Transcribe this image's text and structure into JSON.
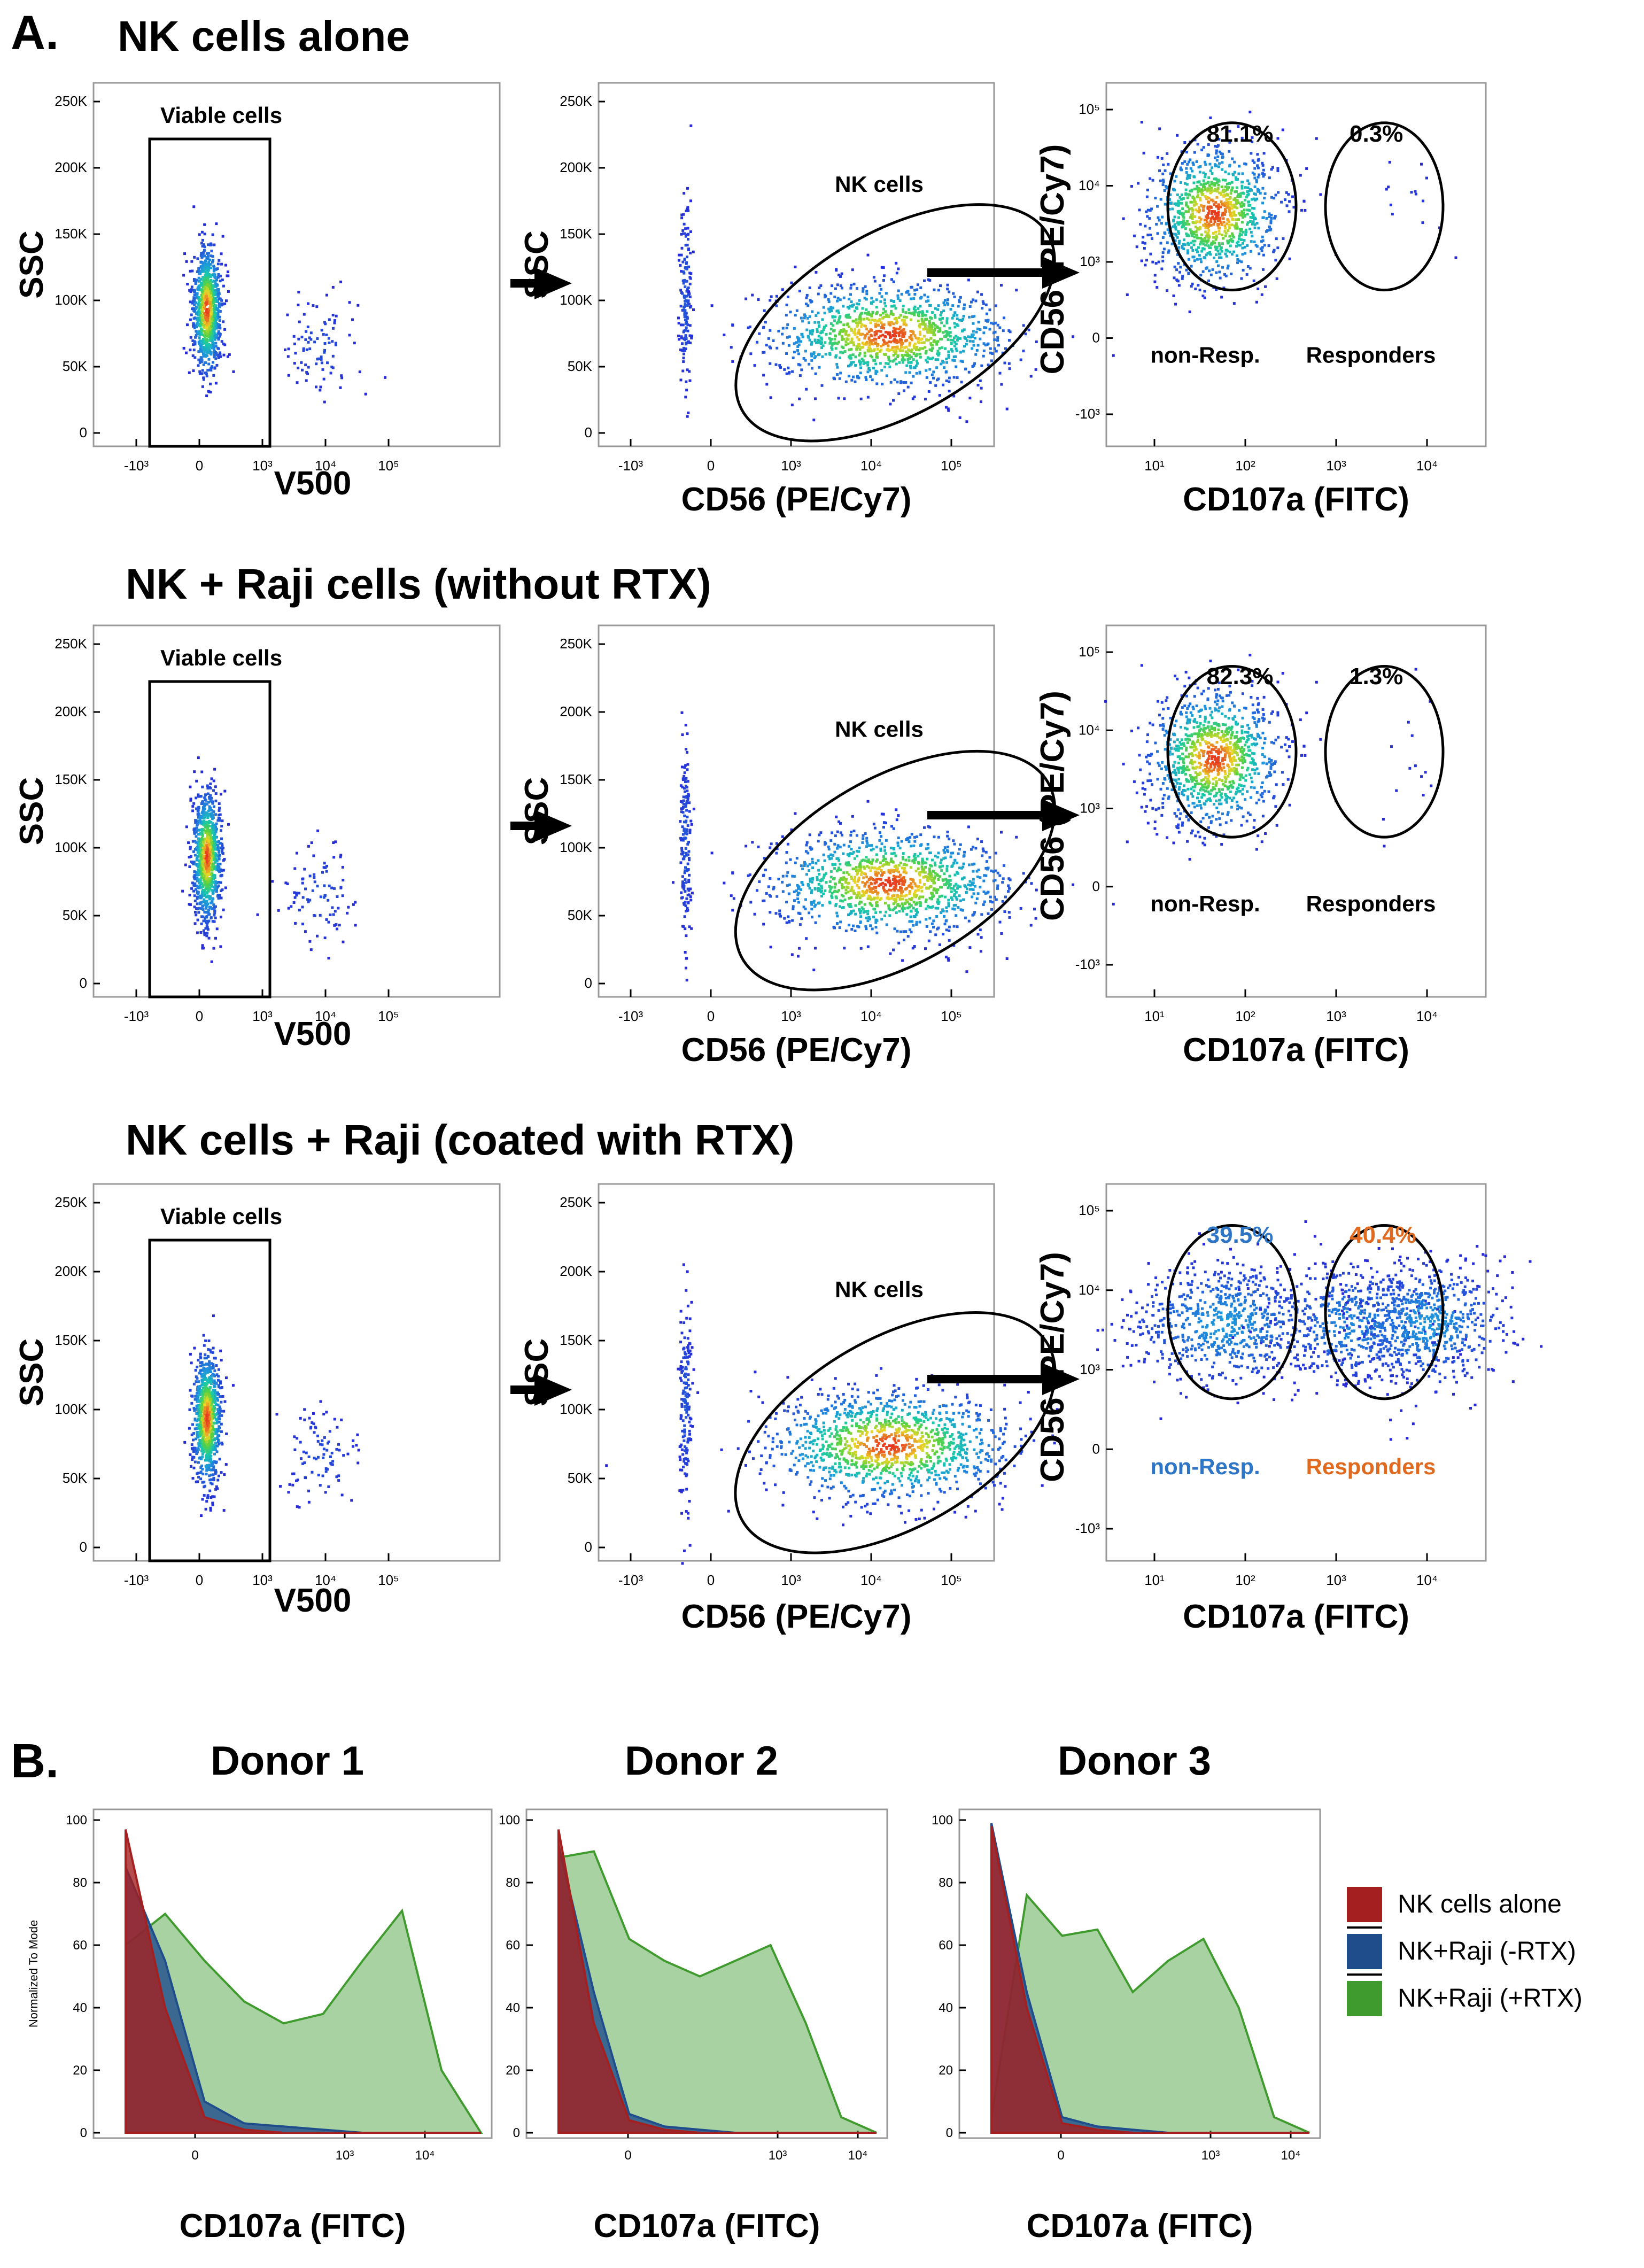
{
  "panel_a": {
    "label": "A.",
    "rows": [
      {
        "title": "NK cells alone",
        "gate1_label": "Viable cells",
        "gate2_label": "NK cells",
        "pct_left": "81.1%",
        "pct_right": "0.3%",
        "gate_left_label": "non-Resp.",
        "gate_right_label": "Responders"
      },
      {
        "title": "NK + Raji cells (without RTX)",
        "gate1_label": "Viable cells",
        "gate2_label": "NK cells",
        "pct_left": "82.3%",
        "pct_right": "1.3%",
        "gate_left_label": "non-Resp.",
        "gate_right_label": "Responders"
      },
      {
        "title": "NK cells + Raji (coated with RTX)",
        "gate1_label": "Viable cells",
        "gate2_label": "NK cells",
        "pct_left": "39.5%",
        "pct_right": "40.4%",
        "gate_left_label": "non-Resp.",
        "gate_right_label": "Responders"
      }
    ],
    "axes": {
      "ssc": "SSC",
      "v500": "V500",
      "cd56_x": "CD56 (PE/Cy7)",
      "cd56_y": "CD56 (PE/Cy7)",
      "cd107a": "CD107a (FITC)"
    },
    "ssc_ticks": [
      "250K",
      "200K",
      "150K",
      "100K",
      "50K",
      "0"
    ],
    "log_x_ticks": [
      "-10³",
      "0",
      "10³",
      "10⁴",
      "10⁵"
    ],
    "cd107_x_ticks": [
      "10¹",
      "10²",
      "10³",
      "10⁴"
    ],
    "cd56_y_ticks": [
      "10⁵",
      "10⁴",
      "10³",
      "0",
      "-10³"
    ]
  },
  "panel_b": {
    "label": "B.",
    "donors": [
      "Donor 1",
      "Donor 2",
      "Donor 3"
    ],
    "y_axis_label": "Normalized To Mode",
    "x_axis_label": "CD107a (FITC)",
    "y_ticks": [
      "100",
      "80",
      "60",
      "40",
      "20",
      "0"
    ],
    "x_ticks": [
      "0",
      "10³",
      "10⁴"
    ],
    "legend": [
      {
        "name": "NK cells alone",
        "color": "#a41f1f"
      },
      {
        "name": "NK+Raji (-RTX)",
        "color": "#1f4d8c"
      },
      {
        "name": "NK+Raji (+RTX)",
        "color": "#3f9b2e"
      }
    ]
  },
  "colors": {
    "pct_blue": "#2f75c5",
    "pct_orange": "#e06b20",
    "density_low": "#1a1adb",
    "density_mid": "#19c3c3",
    "density_high": "#e63a1e"
  },
  "chart_data": [
    {
      "type": "scatter",
      "title": "Gating: NK cells alone",
      "xlabel": "CD107a (FITC)",
      "ylabel": "CD56 (PE/Cy7)",
      "gates": [
        {
          "name": "non-Resp.",
          "percent": 81.1
        },
        {
          "name": "Responders",
          "percent": 0.3
        }
      ]
    },
    {
      "type": "scatter",
      "title": "Gating: NK + Raji cells (without RTX)",
      "xlabel": "CD107a (FITC)",
      "ylabel": "CD56 (PE/Cy7)",
      "gates": [
        {
          "name": "non-Resp.",
          "percent": 82.3
        },
        {
          "name": "Responders",
          "percent": 1.3
        }
      ]
    },
    {
      "type": "scatter",
      "title": "Gating: NK cells + Raji (coated with RTX)",
      "xlabel": "CD107a (FITC)",
      "ylabel": "CD56 (PE/Cy7)",
      "gates": [
        {
          "name": "non-Resp.",
          "percent": 39.5
        },
        {
          "name": "Responders",
          "percent": 40.4
        }
      ]
    },
    {
      "type": "area",
      "title": "Donor 1",
      "xlabel": "CD107a (FITC)",
      "ylabel": "Normalized To Mode",
      "ylim": [
        0,
        100
      ],
      "x": [
        0,
        0.5,
        1,
        1.5,
        2,
        2.5,
        3,
        3.5,
        4,
        4.5
      ],
      "series": [
        {
          "name": "NK cells alone",
          "values": [
            97,
            40,
            5,
            1,
            0,
            0,
            0,
            0,
            0,
            0
          ]
        },
        {
          "name": "NK+Raji (-RTX)",
          "values": [
            85,
            55,
            10,
            3,
            2,
            1,
            0,
            0,
            0,
            0
          ]
        },
        {
          "name": "NK+Raji (+RTX)",
          "values": [
            60,
            70,
            55,
            42,
            35,
            38,
            55,
            71,
            20,
            0
          ]
        }
      ]
    },
    {
      "type": "area",
      "title": "Donor 2",
      "xlabel": "CD107a (FITC)",
      "ylabel": "Normalized To Mode",
      "ylim": [
        0,
        100
      ],
      "x": [
        0,
        0.5,
        1,
        1.5,
        2,
        2.5,
        3,
        3.5,
        4,
        4.5
      ],
      "series": [
        {
          "name": "NK cells alone",
          "values": [
            97,
            35,
            4,
            1,
            0,
            0,
            0,
            0,
            0,
            0
          ]
        },
        {
          "name": "NK+Raji (-RTX)",
          "values": [
            92,
            45,
            6,
            2,
            1,
            0,
            0,
            0,
            0,
            0
          ]
        },
        {
          "name": "NK+Raji (+RTX)",
          "values": [
            88,
            90,
            62,
            55,
            50,
            55,
            60,
            35,
            5,
            0
          ]
        }
      ]
    },
    {
      "type": "area",
      "title": "Donor 3",
      "xlabel": "CD107a (FITC)",
      "ylabel": "Normalized To Mode",
      "ylim": [
        0,
        100
      ],
      "x": [
        0,
        0.5,
        1,
        1.5,
        2,
        2.5,
        3,
        3.5,
        4,
        4.5
      ],
      "series": [
        {
          "name": "NK cells alone",
          "values": [
            98,
            40,
            3,
            1,
            0,
            0,
            0,
            0,
            0,
            0
          ]
        },
        {
          "name": "NK+Raji (-RTX)",
          "values": [
            99,
            45,
            5,
            2,
            1,
            0,
            0,
            0,
            0,
            0
          ]
        },
        {
          "name": "NK+Raji (+RTX)",
          "values": [
            5,
            76,
            63,
            65,
            45,
            55,
            62,
            40,
            5,
            0
          ]
        }
      ]
    }
  ]
}
